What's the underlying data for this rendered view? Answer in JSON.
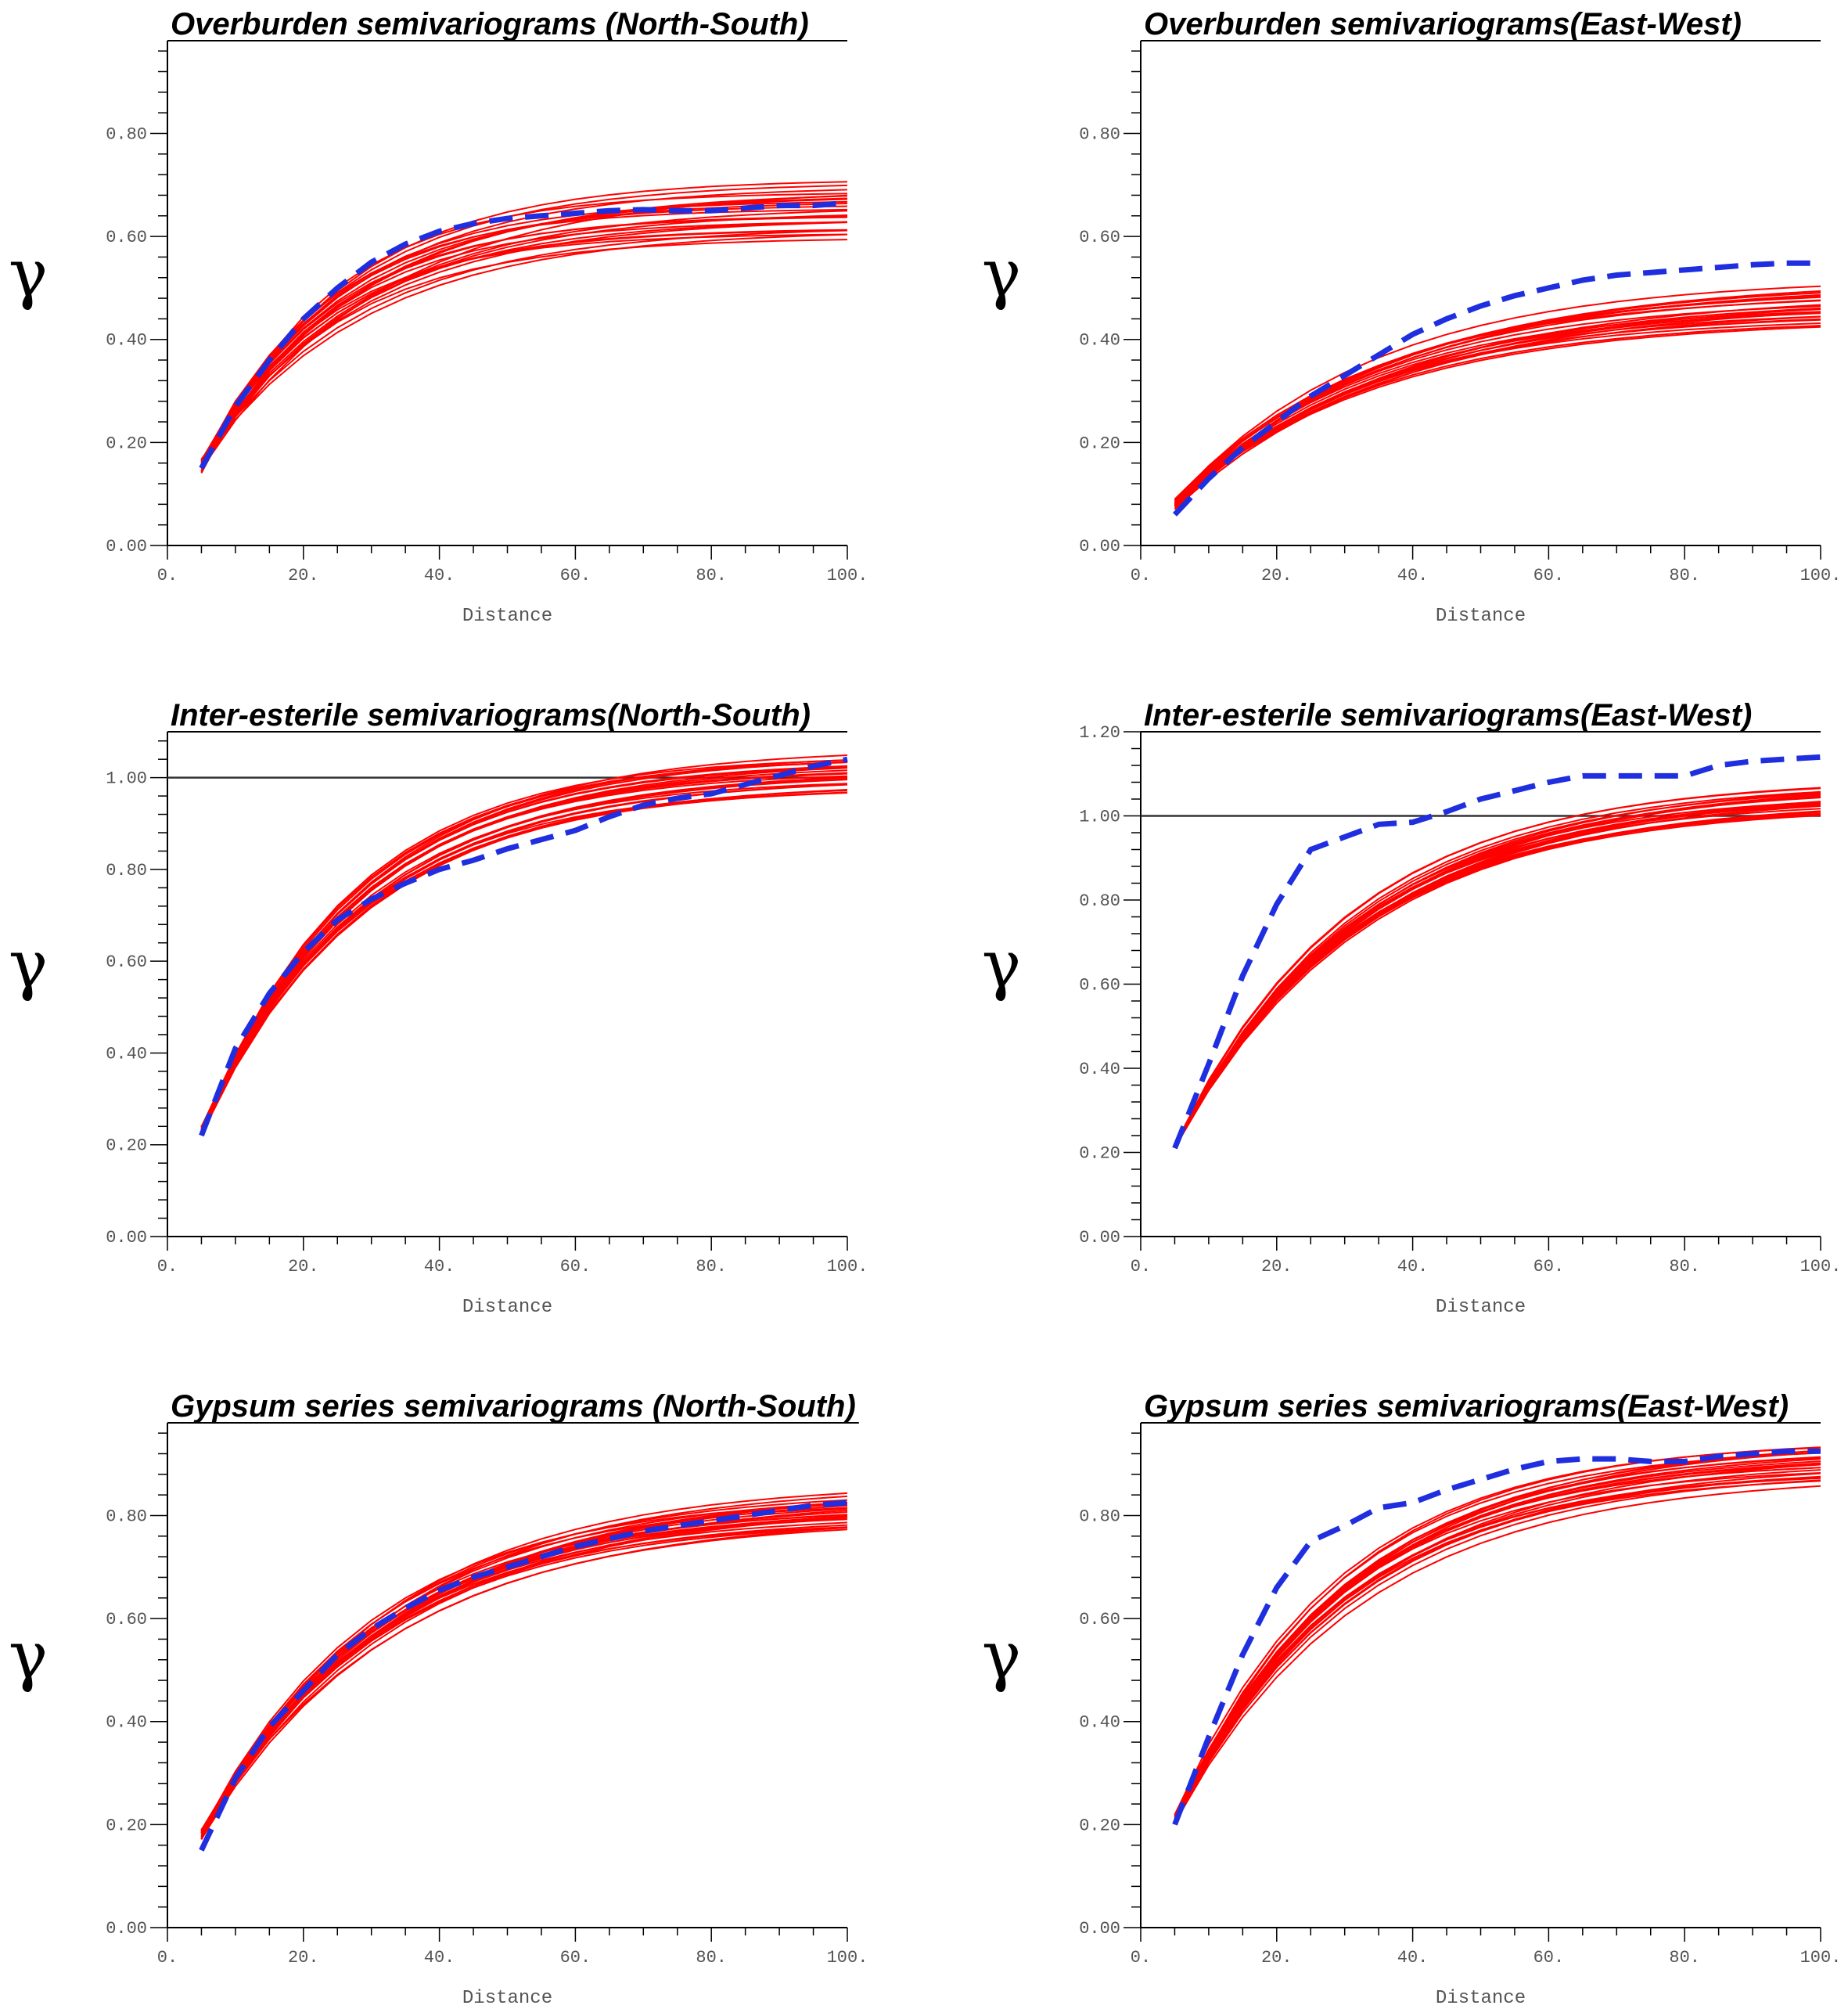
{
  "colors": {
    "realization": "#ff0000",
    "experimental": "#1f2fe0",
    "axis": "#000000",
    "sill": "#333333"
  },
  "chart_data": [
    {
      "type": "line",
      "title": "Overburden semivariograms (North-South)",
      "xlabel": "Distance",
      "ylabel": "γ",
      "xlim": [
        0,
        100
      ],
      "ylim": [
        0,
        0.98
      ],
      "xticks": [
        "0.",
        "20.",
        "40.",
        "60.",
        "80.",
        "100."
      ],
      "yticks": [
        "0.00",
        "0.20",
        "0.40",
        "0.60",
        "0.80"
      ],
      "sill": null,
      "x": [
        5,
        10,
        15,
        20,
        25,
        30,
        35,
        40,
        45,
        50,
        55,
        60,
        65,
        70,
        75,
        80,
        85,
        90,
        95,
        100
      ],
      "experimental": [
        0.15,
        0.27,
        0.36,
        0.44,
        0.5,
        0.55,
        0.585,
        0.61,
        0.625,
        0.635,
        0.64,
        0.645,
        0.65,
        0.652,
        0.65,
        0.65,
        0.655,
        0.66,
        0.66,
        0.665
      ],
      "realizations": {
        "count": 25,
        "k_range": [
          0.038,
          0.055
        ],
        "ymax_range": [
          0.6,
          0.71
        ],
        "y0_range": [
          0.14,
          0.17
        ]
      }
    },
    {
      "type": "line",
      "title": "Overburden semivariograms(East-West)",
      "xlabel": "Distance",
      "ylabel": "γ",
      "xlim": [
        0,
        100
      ],
      "ylim": [
        0,
        0.98
      ],
      "xticks": [
        "0.",
        "20.",
        "40.",
        "60.",
        "80.",
        "100."
      ],
      "yticks": [
        "0.00",
        "0.20",
        "0.40",
        "0.60",
        "0.80"
      ],
      "sill": null,
      "x": [
        5,
        10,
        15,
        20,
        25,
        30,
        35,
        40,
        45,
        50,
        55,
        60,
        65,
        70,
        75,
        80,
        85,
        90,
        95,
        100
      ],
      "experimental": [
        0.06,
        0.13,
        0.19,
        0.24,
        0.29,
        0.33,
        0.37,
        0.41,
        0.44,
        0.465,
        0.485,
        0.5,
        0.515,
        0.525,
        0.53,
        0.535,
        0.54,
        0.545,
        0.548,
        0.548
      ],
      "realizations": {
        "count": 25,
        "k_range": [
          0.03,
          0.036
        ],
        "ymax_range": [
          0.44,
          0.52
        ],
        "y0_range": [
          0.07,
          0.09
        ]
      }
    },
    {
      "type": "line",
      "title": "Inter-esterile semivariograms(North-South)",
      "xlabel": "Distance",
      "ylabel": "γ",
      "xlim": [
        0,
        100
      ],
      "ylim": [
        0,
        1.1
      ],
      "xticks": [
        "0.",
        "20.",
        "40.",
        "60.",
        "80.",
        "100."
      ],
      "yticks": [
        "0.00",
        "0.20",
        "0.40",
        "0.60",
        "0.80",
        "1.00"
      ],
      "sill": 1.0,
      "x": [
        5,
        10,
        15,
        20,
        25,
        30,
        35,
        40,
        45,
        50,
        55,
        60,
        65,
        70,
        75,
        80,
        85,
        90,
        95,
        100
      ],
      "experimental": [
        0.22,
        0.41,
        0.53,
        0.62,
        0.69,
        0.735,
        0.77,
        0.8,
        0.82,
        0.845,
        0.865,
        0.885,
        0.915,
        0.94,
        0.955,
        0.965,
        0.985,
        1.005,
        1.025,
        1.04
      ],
      "realizations": {
        "count": 25,
        "k_range": [
          0.04,
          0.046
        ],
        "ymax_range": [
          0.98,
          1.06
        ],
        "y0_range": [
          0.22,
          0.24
        ]
      }
    },
    {
      "type": "line",
      "title": "Inter-esterile semivariograms(East-West)",
      "xlabel": "Distance",
      "ylabel": "γ",
      "xlim": [
        0,
        100
      ],
      "ylim": [
        0,
        1.2
      ],
      "xticks": [
        "0.",
        "20.",
        "40.",
        "60.",
        "80.",
        "100."
      ],
      "yticks": [
        "0.00",
        "0.20",
        "0.40",
        "0.60",
        "0.80",
        "1.00",
        "1.20"
      ],
      "sill": 1.0,
      "x": [
        5,
        10,
        15,
        20,
        25,
        30,
        35,
        40,
        45,
        50,
        55,
        60,
        65,
        70,
        75,
        80,
        85,
        90,
        95,
        100
      ],
      "experimental": [
        0.21,
        0.41,
        0.62,
        0.79,
        0.92,
        0.95,
        0.98,
        0.985,
        1.01,
        1.04,
        1.06,
        1.08,
        1.095,
        1.095,
        1.095,
        1.095,
        1.12,
        1.13,
        1.135,
        1.14
      ],
      "realizations": {
        "count": 25,
        "k_range": [
          0.035,
          0.039
        ],
        "ymax_range": [
          1.02,
          1.09
        ],
        "y0_range": [
          0.21,
          0.22
        ]
      }
    },
    {
      "type": "line",
      "title": "Gypsum series semivariograms (North-South)",
      "xlabel": "Distance",
      "ylabel": "γ",
      "xlim": [
        0,
        100
      ],
      "ylim": [
        0,
        0.98
      ],
      "xticks": [
        "0.",
        "20.",
        "40.",
        "60.",
        "80.",
        "100."
      ],
      "yticks": [
        "0.00",
        "0.20",
        "0.40",
        "0.60",
        "0.80"
      ],
      "sill": null,
      "x": [
        5,
        10,
        15,
        20,
        25,
        30,
        35,
        40,
        45,
        50,
        55,
        60,
        65,
        70,
        75,
        80,
        85,
        90,
        95,
        100
      ],
      "experimental": [
        0.15,
        0.29,
        0.39,
        0.46,
        0.53,
        0.58,
        0.62,
        0.655,
        0.68,
        0.7,
        0.72,
        0.74,
        0.755,
        0.77,
        0.78,
        0.79,
        0.8,
        0.81,
        0.82,
        0.825
      ],
      "realizations": {
        "count": 25,
        "k_range": [
          0.034,
          0.04
        ],
        "ymax_range": [
          0.79,
          0.86
        ],
        "y0_range": [
          0.17,
          0.19
        ]
      }
    },
    {
      "type": "line",
      "title": "Gypsum series semivariograms(East-West)",
      "xlabel": "Distance",
      "ylabel": "γ",
      "xlim": [
        0,
        100
      ],
      "ylim": [
        0,
        0.98
      ],
      "xticks": [
        "0.",
        "20.",
        "40.",
        "60.",
        "80.",
        "100."
      ],
      "yticks": [
        "0.00",
        "0.20",
        "0.40",
        "0.60",
        "0.80"
      ],
      "sill": null,
      "x": [
        5,
        10,
        15,
        20,
        25,
        30,
        35,
        40,
        45,
        50,
        55,
        60,
        65,
        70,
        75,
        80,
        85,
        90,
        95,
        100
      ],
      "experimental": [
        0.2,
        0.37,
        0.53,
        0.66,
        0.75,
        0.78,
        0.815,
        0.825,
        0.85,
        0.87,
        0.89,
        0.905,
        0.91,
        0.91,
        0.905,
        0.905,
        0.915,
        0.92,
        0.925,
        0.925
      ],
      "realizations": {
        "count": 25,
        "k_range": [
          0.036,
          0.042
        ],
        "ymax_range": [
          0.88,
          0.95
        ],
        "y0_range": [
          0.2,
          0.22
        ]
      }
    }
  ]
}
